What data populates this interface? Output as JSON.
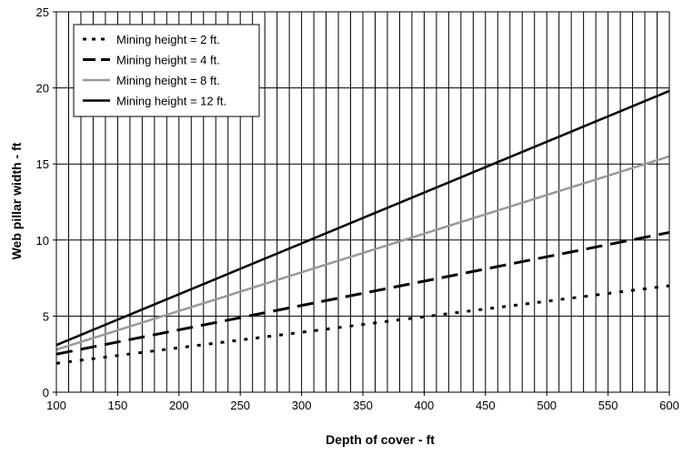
{
  "chart_data": {
    "type": "line",
    "title": "",
    "xlabel": "Depth of cover - ft",
    "ylabel": "Web pillar width - ft",
    "xlim": [
      100,
      600
    ],
    "ylim": [
      0,
      25
    ],
    "x_ticks": [
      100,
      150,
      200,
      250,
      300,
      350,
      400,
      450,
      500,
      550,
      600
    ],
    "y_ticks": [
      0,
      5,
      10,
      15,
      20,
      25
    ],
    "x_tick_labels": [
      "100",
      "150",
      "200",
      "250",
      "300",
      "350",
      "400",
      "450",
      "500",
      "550",
      "600"
    ],
    "y_tick_labels": [
      "0",
      "5",
      "10",
      "15",
      "20",
      "25"
    ],
    "x_minor_step": 10,
    "grid": {
      "vertical": "every 10 ft",
      "horizontal": "every 5 ft"
    },
    "legend_position": "top-left",
    "series": [
      {
        "name": "Mining height = 2 ft.",
        "color": "#000000",
        "style": "dotted",
        "x": [
          100,
          600
        ],
        "y": [
          1.9,
          7.0
        ]
      },
      {
        "name": "Mining height = 4 ft.",
        "color": "#000000",
        "style": "dashed",
        "x": [
          100,
          600
        ],
        "y": [
          2.5,
          10.5
        ]
      },
      {
        "name": "Mining height = 8 ft.",
        "color": "#999999",
        "style": "solid",
        "x": [
          100,
          600
        ],
        "y": [
          2.8,
          15.5
        ]
      },
      {
        "name": "Mining height = 12 ft.",
        "color": "#000000",
        "style": "solid",
        "x": [
          100,
          600
        ],
        "y": [
          3.1,
          19.8
        ]
      }
    ]
  }
}
